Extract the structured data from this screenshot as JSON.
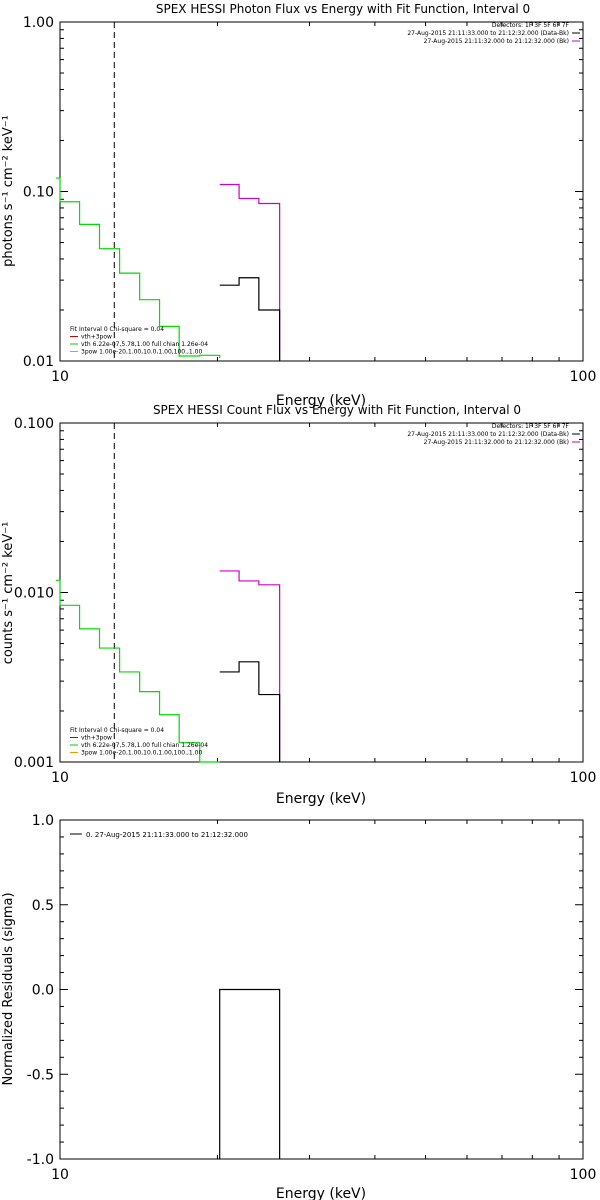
{
  "chart_data": [
    {
      "type": "line",
      "title": "SPEX HESSI Photon Flux vs Energy with Fit Function, Interval 0",
      "xlabel": "Energy (keV)",
      "ylabel": "photons s⁻¹ cm⁻² keV⁻¹",
      "xscale": "log",
      "yscale": "log",
      "xlim": [
        10,
        100
      ],
      "ylim": [
        0.01,
        1.0
      ],
      "xticks": [
        {
          "v": 10,
          "label": "10"
        },
        {
          "v": 100,
          "label": "100"
        }
      ],
      "yticks": [
        {
          "v": 0.01,
          "label": "0.01"
        },
        {
          "v": 0.1,
          "label": "0.10"
        },
        {
          "v": 1.0,
          "label": "1.00"
        }
      ],
      "vline": 12.7,
      "header": [
        {
          "text": "Detectors: 1F 3F 5F 6F 7F",
          "color": ""
        },
        {
          "text": "27-Aug-2015 21:11:33.000 to 21:12:32.000 (Data-Bk)",
          "color": "#000000"
        },
        {
          "text": "27-Aug-2015 21:11:32.000 to 21:12:32.000 (Bk)",
          "color": "#cc00cc"
        }
      ],
      "fit_legend": [
        {
          "text": "Fit Interval 0   Chi-square = 0.04",
          "color": ""
        },
        {
          "text": "vth+3pow",
          "color": "#cc0000"
        },
        {
          "text": "vth 6.22e-07,5.78,1.00   full chian 1.26e-04",
          "color": "#00cc00"
        },
        {
          "text": "3pow 1.00e-20,1.00,10.0,1.00,100.,1.00",
          "color": "#e0a000"
        }
      ],
      "series": [
        {
          "color": "#00dd00",
          "steps": [
            [
              9.6,
              0.12
            ],
            [
              10.0,
              0.087
            ],
            [
              10.9,
              0.064
            ],
            [
              11.9,
              0.046
            ],
            [
              13.0,
              0.033
            ],
            [
              14.2,
              0.023
            ],
            [
              15.5,
              0.016
            ],
            [
              16.9,
              0.0107
            ],
            [
              18.5,
              0.0108
            ],
            [
              20.2,
              0.0104
            ]
          ]
        },
        {
          "color": "#cc00cc",
          "steps": [
            [
              20.2,
              0.11
            ],
            [
              22.0,
              0.091
            ],
            [
              24.0,
              0.085
            ],
            [
              26.3,
              0.0085
            ]
          ]
        },
        {
          "color": "#000000",
          "steps": [
            [
              20.2,
              0.028
            ],
            [
              22.0,
              0.031
            ],
            [
              24.0,
              0.02
            ],
            [
              26.3,
              0.0085
            ]
          ]
        }
      ]
    },
    {
      "type": "line",
      "title": "SPEX HESSI Count Flux vs Energy with Fit Function, Interval 0",
      "xlabel": "Energy (keV)",
      "ylabel": "counts s⁻¹ cm⁻² keV⁻¹",
      "xscale": "log",
      "yscale": "log",
      "xlim": [
        10,
        100
      ],
      "ylim": [
        0.001,
        0.1
      ],
      "xticks": [
        {
          "v": 10,
          "label": "10"
        },
        {
          "v": 100,
          "label": "100"
        }
      ],
      "yticks": [
        {
          "v": 0.001,
          "label": "0.001"
        },
        {
          "v": 0.01,
          "label": "0.010"
        },
        {
          "v": 0.1,
          "label": "0.100"
        }
      ],
      "vline": 12.7,
      "header": [
        {
          "text": "Detectors: 1F 3F 5F 6F 7F",
          "color": ""
        },
        {
          "text": "27-Aug-2015 21:11:33.000 to 21:12:32.000 (Data-Bk)",
          "color": "#000000"
        },
        {
          "text": "27-Aug-2015 21:11:32.000 to 21:12:32.000 (Bk)",
          "color": "#cc00cc"
        }
      ],
      "fit_legend": [
        {
          "text": "Fit Interval 0   Chi-square = 0.04",
          "color": ""
        },
        {
          "text": "vth+3pow",
          "color": "#cc0000"
        },
        {
          "text": "vth 6.22e-07,5.78,1.00   full chian 1.26e-04",
          "color": "#00cc00"
        },
        {
          "text": "3pow 1.00e-20,1.00,10.0,1.00,100.,1.00",
          "color": "#e0a000"
        }
      ],
      "series": [
        {
          "color": "#00dd00",
          "steps": [
            [
              9.6,
              0.0118
            ],
            [
              10.0,
              0.0084
            ],
            [
              10.9,
              0.0061
            ],
            [
              11.9,
              0.0047
            ],
            [
              13.0,
              0.0034
            ],
            [
              14.2,
              0.0026
            ],
            [
              15.5,
              0.0019
            ],
            [
              16.9,
              0.0013
            ],
            [
              18.5,
              0.00095
            ],
            [
              20.2,
              0.0009
            ]
          ]
        },
        {
          "color": "#cc00cc",
          "steps": [
            [
              20.2,
              0.0134
            ],
            [
              22.0,
              0.0117
            ],
            [
              24.0,
              0.0111
            ],
            [
              26.3,
              0.00085
            ]
          ]
        },
        {
          "color": "#000000",
          "steps": [
            [
              20.2,
              0.0034
            ],
            [
              22.0,
              0.0039
            ],
            [
              24.0,
              0.0025
            ],
            [
              26.3,
              0.00085
            ]
          ]
        }
      ]
    },
    {
      "type": "line",
      "title": "",
      "xlabel": "Energy (keV)",
      "ylabel": "Normalized Residuals (sigma)",
      "xscale": "log",
      "yscale": "linear",
      "xlim": [
        10,
        100
      ],
      "ylim": [
        -1.0,
        1.0
      ],
      "xticks": [
        {
          "v": 10,
          "label": "10"
        },
        {
          "v": 100,
          "label": "100"
        }
      ],
      "yticks": [
        {
          "v": -1.0,
          "label": "-1.0"
        },
        {
          "v": -0.5,
          "label": "-0.5"
        },
        {
          "v": 0.0,
          "label": "0.0"
        },
        {
          "v": 0.5,
          "label": "0.5"
        },
        {
          "v": 1.0,
          "label": "1.0"
        }
      ],
      "legend": "0. 27-Aug-2015 21:11:33.000 to 21:12:32.000",
      "residual": {
        "x1": 20.2,
        "x2": 26.3,
        "value": 0.0
      }
    }
  ]
}
